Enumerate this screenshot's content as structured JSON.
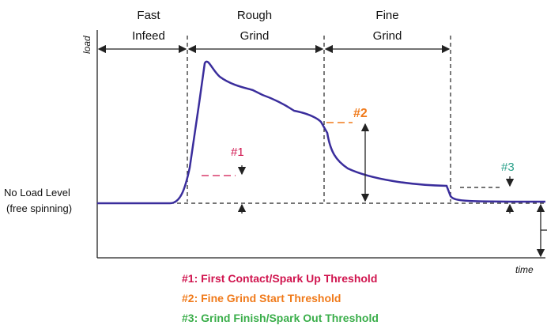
{
  "phases": [
    {
      "line1": "Fast",
      "line2": "Infeed"
    },
    {
      "line1": "Rough",
      "line2": "Grind"
    },
    {
      "line1": "Fine",
      "line2": "Grind"
    }
  ],
  "axes": {
    "y_label": "load",
    "x_label": "time"
  },
  "no_load": {
    "line1": "No Load Level",
    "line2": "(free spinning)"
  },
  "markers": [
    "#1",
    "#2",
    "#3"
  ],
  "legend": [
    "#1:  First Contact/Spark Up Threshold",
    "#2:  Fine Grind Start Threshold",
    "#3:  Grind Finish/Spark Out Threshold"
  ]
}
